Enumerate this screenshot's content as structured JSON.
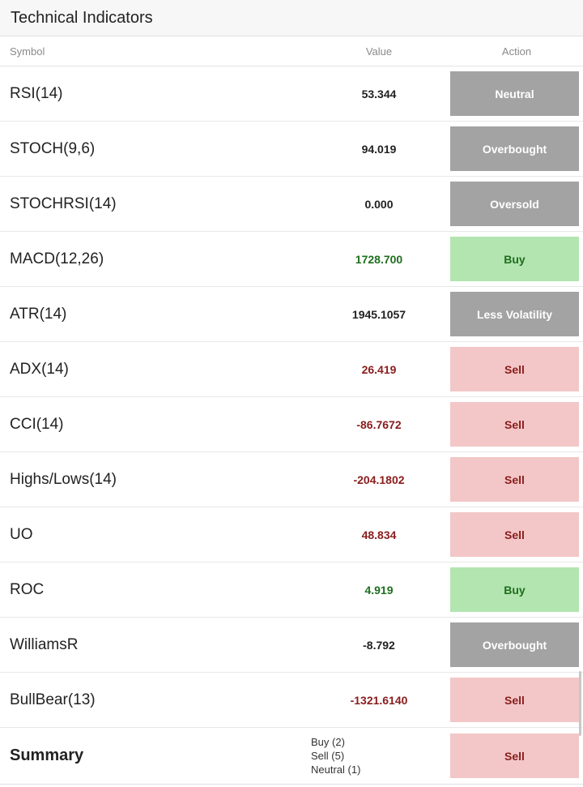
{
  "title": "Technical Indicators",
  "columns": {
    "symbol": "Symbol",
    "value": "Value",
    "action": "Action"
  },
  "rows": [
    {
      "symbol": "RSI(14)",
      "value": "53.344",
      "value_tone": "neutral",
      "action": "Neutral",
      "action_tone": "neutral"
    },
    {
      "symbol": "STOCH(9,6)",
      "value": "94.019",
      "value_tone": "neutral",
      "action": "Overbought",
      "action_tone": "neutral"
    },
    {
      "symbol": "STOCHRSI(14)",
      "value": "0.000",
      "value_tone": "neutral",
      "action": "Oversold",
      "action_tone": "neutral"
    },
    {
      "symbol": "MACD(12,26)",
      "value": "1728.700",
      "value_tone": "buy",
      "action": "Buy",
      "action_tone": "buy"
    },
    {
      "symbol": "ATR(14)",
      "value": "1945.1057",
      "value_tone": "neutral",
      "action": "Less Volatility",
      "action_tone": "neutral"
    },
    {
      "symbol": "ADX(14)",
      "value": "26.419",
      "value_tone": "sell",
      "action": "Sell",
      "action_tone": "sell"
    },
    {
      "symbol": "CCI(14)",
      "value": "-86.7672",
      "value_tone": "sell",
      "action": "Sell",
      "action_tone": "sell"
    },
    {
      "symbol": "Highs/Lows(14)",
      "value": "-204.1802",
      "value_tone": "sell",
      "action": "Sell",
      "action_tone": "sell"
    },
    {
      "symbol": "UO",
      "value": "48.834",
      "value_tone": "sell",
      "action": "Sell",
      "action_tone": "sell"
    },
    {
      "symbol": "ROC",
      "value": "4.919",
      "value_tone": "buy",
      "action": "Buy",
      "action_tone": "buy"
    },
    {
      "symbol": "WilliamsR",
      "value": "-8.792",
      "value_tone": "neutral",
      "action": "Overbought",
      "action_tone": "neutral"
    },
    {
      "symbol": "BullBear(13)",
      "value": "-1321.6140",
      "value_tone": "sell",
      "action": "Sell",
      "action_tone": "sell"
    }
  ],
  "summary": {
    "label": "Summary",
    "buy": "Buy (2)",
    "sell": "Sell (5)",
    "neutral": "Neutral (1)",
    "action": "Sell",
    "action_tone": "sell"
  },
  "colors": {
    "buy_bg": "#b3e5b0",
    "buy_text": "#1e6e1e",
    "sell_bg": "#f3c7c7",
    "sell_text": "#8a1c1c",
    "neutral_bg": "#a3a3a3"
  }
}
